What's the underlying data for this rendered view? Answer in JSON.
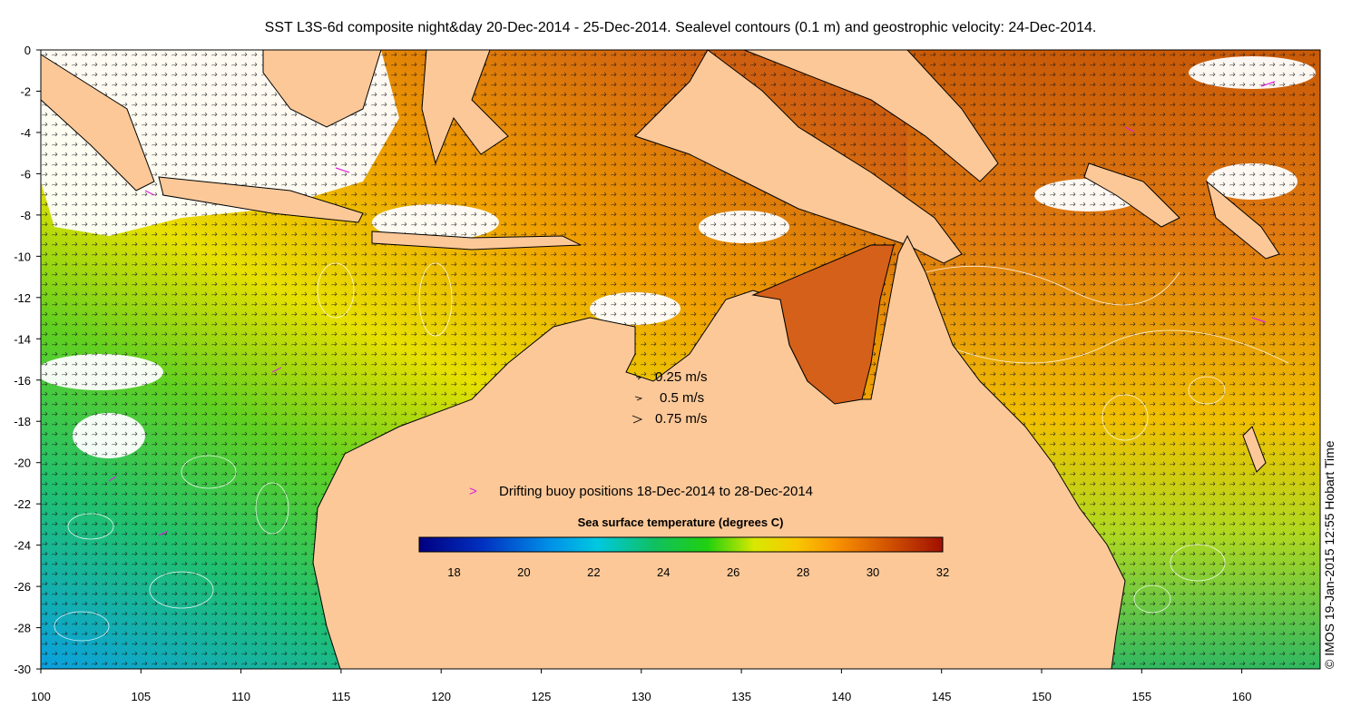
{
  "title": "SST L3S-6d composite night&day 20-Dec-2014 - 25-Dec-2014. Sealevel contours (0.1 m) and geostrophic velocity: 24-Dec-2014.",
  "credit": "© IMOS 19-Jan-2015 12:55 Hobart Time",
  "x_ticks": [
    "100",
    "105",
    "110",
    "115",
    "120",
    "125",
    "130",
    "135",
    "140",
    "145",
    "150",
    "155",
    "160"
  ],
  "y_ticks": [
    "0",
    "-2",
    "-4",
    "-6",
    "-8",
    "-10",
    "-12",
    "-14",
    "-16",
    "-18",
    "-20",
    "-22",
    "-24",
    "-26",
    "-28",
    "-30"
  ],
  "velocity_legend": {
    "items": [
      {
        "label": "0.25 m/s"
      },
      {
        "label": "0.5 m/s"
      },
      {
        "label": "0.75 m/s"
      }
    ]
  },
  "buoy_legend": {
    "symbol": ">",
    "label": "Drifting buoy positions 18-Dec-2014 to 28-Dec-2014",
    "color": "#e020e0"
  },
  "colorbar": {
    "title": "Sea surface temperature (degrees C)",
    "min": 17,
    "max": 32,
    "ticks": [
      "18",
      "20",
      "22",
      "24",
      "26",
      "28",
      "30",
      "32"
    ]
  },
  "colors": {
    "land": "#fcc898",
    "background": "#ffffff",
    "contour": "#ffffff"
  }
}
